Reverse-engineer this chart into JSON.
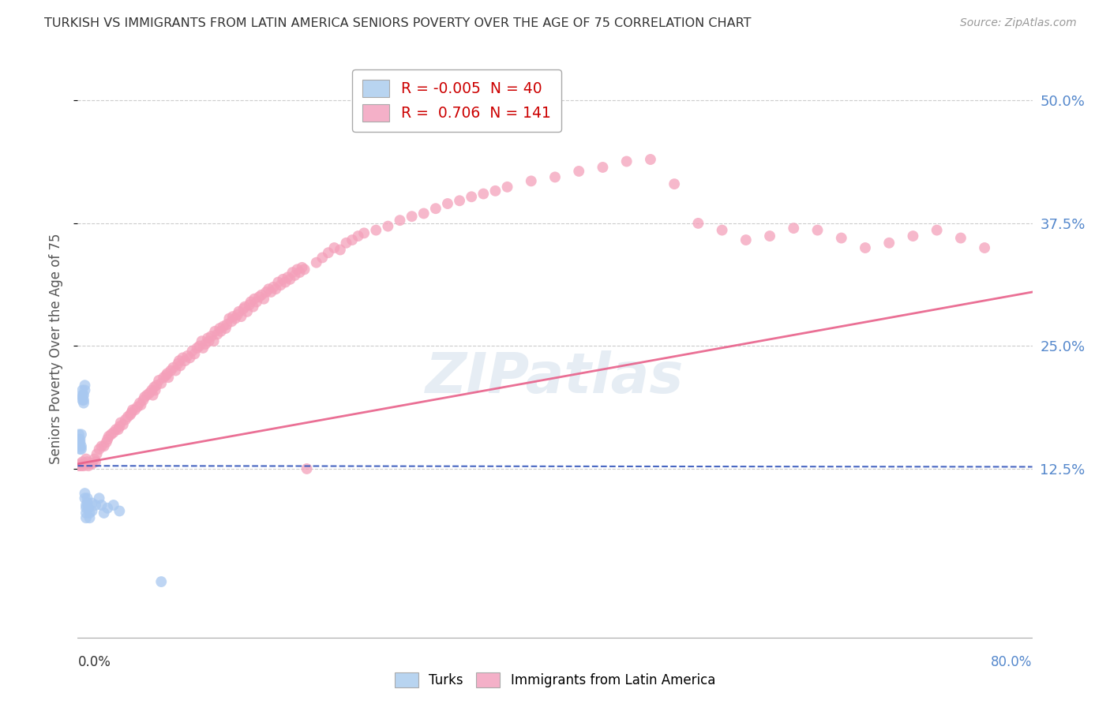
{
  "title": "TURKISH VS IMMIGRANTS FROM LATIN AMERICA SENIORS POVERTY OVER THE AGE OF 75 CORRELATION CHART",
  "source": "Source: ZipAtlas.com",
  "ylabel": "Seniors Poverty Over the Age of 75",
  "xlim": [
    0.0,
    0.8
  ],
  "ylim": [
    -0.05,
    0.545
  ],
  "yticks": [
    0.125,
    0.25,
    0.375,
    0.5
  ],
  "ytick_labels": [
    "12.5%",
    "25.0%",
    "37.5%",
    "50.0%"
  ],
  "turks_color": "#a8c8f0",
  "latin_color": "#f4a0ba",
  "turks_line_color": "#3355bb",
  "latin_line_color": "#e8608a",
  "watermark": "ZIPatlas",
  "background_color": "#ffffff",
  "grid_color": "#cccccc",
  "turks_data": [
    [
      0.001,
      0.148
    ],
    [
      0.001,
      0.155
    ],
    [
      0.001,
      0.16
    ],
    [
      0.002,
      0.145
    ],
    [
      0.002,
      0.152
    ],
    [
      0.002,
      0.148
    ],
    [
      0.002,
      0.155
    ],
    [
      0.003,
      0.148
    ],
    [
      0.003,
      0.16
    ],
    [
      0.003,
      0.145
    ],
    [
      0.004,
      0.2
    ],
    [
      0.004,
      0.205
    ],
    [
      0.004,
      0.195
    ],
    [
      0.004,
      0.198
    ],
    [
      0.005,
      0.195
    ],
    [
      0.005,
      0.2
    ],
    [
      0.005,
      0.192
    ],
    [
      0.006,
      0.21
    ],
    [
      0.006,
      0.205
    ],
    [
      0.006,
      0.095
    ],
    [
      0.006,
      0.1
    ],
    [
      0.007,
      0.085
    ],
    [
      0.007,
      0.075
    ],
    [
      0.007,
      0.088
    ],
    [
      0.007,
      0.08
    ],
    [
      0.008,
      0.095
    ],
    [
      0.008,
      0.09
    ],
    [
      0.009,
      0.085
    ],
    [
      0.01,
      0.08
    ],
    [
      0.01,
      0.075
    ],
    [
      0.012,
      0.09
    ],
    [
      0.012,
      0.082
    ],
    [
      0.015,
      0.088
    ],
    [
      0.018,
      0.095
    ],
    [
      0.02,
      0.088
    ],
    [
      0.022,
      0.08
    ],
    [
      0.025,
      0.085
    ],
    [
      0.03,
      0.088
    ],
    [
      0.035,
      0.082
    ],
    [
      0.07,
      0.01
    ]
  ],
  "latin_data": [
    [
      0.001,
      0.128
    ],
    [
      0.002,
      0.13
    ],
    [
      0.003,
      0.128
    ],
    [
      0.004,
      0.132
    ],
    [
      0.005,
      0.128
    ],
    [
      0.006,
      0.13
    ],
    [
      0.007,
      0.135
    ],
    [
      0.008,
      0.132
    ],
    [
      0.009,
      0.128
    ],
    [
      0.01,
      0.13
    ],
    [
      0.012,
      0.13
    ],
    [
      0.014,
      0.135
    ],
    [
      0.015,
      0.132
    ],
    [
      0.016,
      0.14
    ],
    [
      0.018,
      0.145
    ],
    [
      0.02,
      0.148
    ],
    [
      0.022,
      0.148
    ],
    [
      0.024,
      0.152
    ],
    [
      0.025,
      0.155
    ],
    [
      0.026,
      0.158
    ],
    [
      0.028,
      0.16
    ],
    [
      0.03,
      0.162
    ],
    [
      0.032,
      0.165
    ],
    [
      0.034,
      0.165
    ],
    [
      0.035,
      0.168
    ],
    [
      0.036,
      0.172
    ],
    [
      0.038,
      0.17
    ],
    [
      0.04,
      0.175
    ],
    [
      0.042,
      0.178
    ],
    [
      0.044,
      0.18
    ],
    [
      0.045,
      0.182
    ],
    [
      0.046,
      0.185
    ],
    [
      0.048,
      0.185
    ],
    [
      0.05,
      0.188
    ],
    [
      0.052,
      0.192
    ],
    [
      0.053,
      0.19
    ],
    [
      0.055,
      0.195
    ],
    [
      0.056,
      0.198
    ],
    [
      0.058,
      0.2
    ],
    [
      0.06,
      0.202
    ],
    [
      0.062,
      0.205
    ],
    [
      0.063,
      0.2
    ],
    [
      0.064,
      0.208
    ],
    [
      0.065,
      0.205
    ],
    [
      0.066,
      0.21
    ],
    [
      0.068,
      0.215
    ],
    [
      0.07,
      0.212
    ],
    [
      0.072,
      0.218
    ],
    [
      0.074,
      0.22
    ],
    [
      0.075,
      0.222
    ],
    [
      0.076,
      0.218
    ],
    [
      0.078,
      0.225
    ],
    [
      0.08,
      0.228
    ],
    [
      0.082,
      0.225
    ],
    [
      0.084,
      0.232
    ],
    [
      0.085,
      0.235
    ],
    [
      0.086,
      0.23
    ],
    [
      0.088,
      0.238
    ],
    [
      0.09,
      0.235
    ],
    [
      0.092,
      0.24
    ],
    [
      0.094,
      0.238
    ],
    [
      0.096,
      0.245
    ],
    [
      0.098,
      0.242
    ],
    [
      0.1,
      0.248
    ],
    [
      0.102,
      0.25
    ],
    [
      0.104,
      0.255
    ],
    [
      0.105,
      0.248
    ],
    [
      0.107,
      0.252
    ],
    [
      0.109,
      0.258
    ],
    [
      0.11,
      0.255
    ],
    [
      0.112,
      0.26
    ],
    [
      0.114,
      0.255
    ],
    [
      0.115,
      0.265
    ],
    [
      0.117,
      0.262
    ],
    [
      0.119,
      0.268
    ],
    [
      0.12,
      0.265
    ],
    [
      0.122,
      0.27
    ],
    [
      0.124,
      0.268
    ],
    [
      0.125,
      0.272
    ],
    [
      0.127,
      0.278
    ],
    [
      0.129,
      0.275
    ],
    [
      0.13,
      0.28
    ],
    [
      0.132,
      0.278
    ],
    [
      0.134,
      0.282
    ],
    [
      0.135,
      0.285
    ],
    [
      0.137,
      0.28
    ],
    [
      0.139,
      0.288
    ],
    [
      0.14,
      0.29
    ],
    [
      0.142,
      0.285
    ],
    [
      0.144,
      0.292
    ],
    [
      0.145,
      0.295
    ],
    [
      0.147,
      0.29
    ],
    [
      0.148,
      0.298
    ],
    [
      0.15,
      0.295
    ],
    [
      0.152,
      0.3
    ],
    [
      0.154,
      0.302
    ],
    [
      0.156,
      0.298
    ],
    [
      0.158,
      0.305
    ],
    [
      0.16,
      0.308
    ],
    [
      0.162,
      0.305
    ],
    [
      0.164,
      0.31
    ],
    [
      0.166,
      0.308
    ],
    [
      0.168,
      0.315
    ],
    [
      0.17,
      0.312
    ],
    [
      0.172,
      0.318
    ],
    [
      0.174,
      0.315
    ],
    [
      0.176,
      0.32
    ],
    [
      0.178,
      0.318
    ],
    [
      0.18,
      0.325
    ],
    [
      0.182,
      0.322
    ],
    [
      0.184,
      0.328
    ],
    [
      0.186,
      0.325
    ],
    [
      0.188,
      0.33
    ],
    [
      0.19,
      0.328
    ],
    [
      0.192,
      0.125
    ],
    [
      0.2,
      0.335
    ],
    [
      0.205,
      0.34
    ],
    [
      0.21,
      0.345
    ],
    [
      0.215,
      0.35
    ],
    [
      0.22,
      0.348
    ],
    [
      0.225,
      0.355
    ],
    [
      0.23,
      0.358
    ],
    [
      0.235,
      0.362
    ],
    [
      0.24,
      0.365
    ],
    [
      0.25,
      0.368
    ],
    [
      0.26,
      0.372
    ],
    [
      0.27,
      0.378
    ],
    [
      0.28,
      0.382
    ],
    [
      0.29,
      0.385
    ],
    [
      0.3,
      0.39
    ],
    [
      0.31,
      0.395
    ],
    [
      0.32,
      0.398
    ],
    [
      0.33,
      0.402
    ],
    [
      0.34,
      0.405
    ],
    [
      0.35,
      0.408
    ],
    [
      0.36,
      0.412
    ],
    [
      0.38,
      0.418
    ],
    [
      0.4,
      0.422
    ],
    [
      0.42,
      0.428
    ],
    [
      0.44,
      0.432
    ],
    [
      0.46,
      0.438
    ],
    [
      0.48,
      0.44
    ],
    [
      0.5,
      0.415
    ],
    [
      0.52,
      0.375
    ],
    [
      0.54,
      0.368
    ],
    [
      0.56,
      0.358
    ],
    [
      0.58,
      0.362
    ],
    [
      0.6,
      0.37
    ],
    [
      0.62,
      0.368
    ],
    [
      0.64,
      0.36
    ],
    [
      0.66,
      0.35
    ],
    [
      0.68,
      0.355
    ],
    [
      0.7,
      0.362
    ],
    [
      0.72,
      0.368
    ],
    [
      0.74,
      0.36
    ],
    [
      0.76,
      0.35
    ]
  ]
}
